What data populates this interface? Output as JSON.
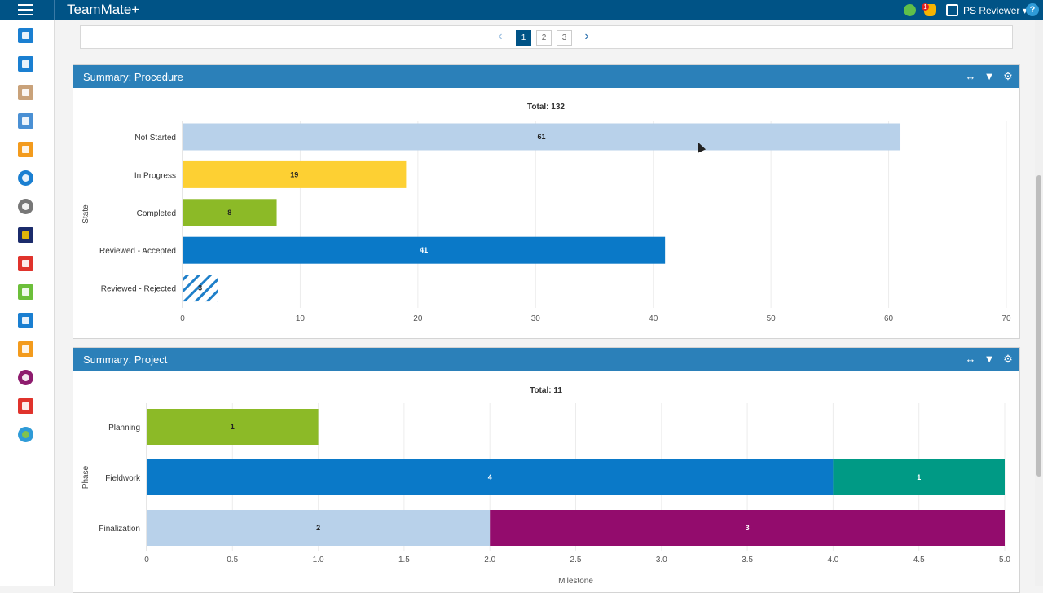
{
  "app": {
    "title": "TeamMate+",
    "user": "PS Reviewer",
    "notification_count": "1",
    "help": "?"
  },
  "icons": {
    "menu": "hamburger-icon",
    "top_right": [
      "send-icon",
      "bell-icon",
      "external-link-icon",
      "help-icon"
    ],
    "sidebar": [
      "home-icon",
      "dashboard-icon",
      "clipboard-icon",
      "tools-icon",
      "briefcase-icon",
      "search-icon",
      "clock-icon",
      "bell-icon",
      "calendar-icon",
      "edit-icon",
      "checklist-icon",
      "document-icon",
      "alert-circle-icon",
      "warning-icon",
      "globe-icon"
    ]
  },
  "colors": {
    "header": "#005386",
    "panel_header": "#2b80b9"
  },
  "pager": {
    "pages": [
      "1",
      "2",
      "3"
    ],
    "current": "1"
  },
  "procedure": {
    "title": "Summary: Procedure",
    "chart_data": {
      "type": "bar",
      "orientation": "horizontal",
      "title": "Total: 132",
      "ylabel": "State",
      "xlabel": "",
      "categories": [
        "Not Started",
        "In Progress",
        "Completed",
        "Reviewed - Accepted",
        "Reviewed - Rejected"
      ],
      "values": [
        61,
        19,
        8,
        41,
        3
      ],
      "value_labels": [
        "61",
        "19",
        "8",
        "41",
        "3"
      ],
      "colors": [
        "#b8d1ea",
        "#fdd033",
        "#8cba27",
        "#0a79c8",
        "hatched-blue"
      ],
      "xlim": [
        0,
        70
      ],
      "xticks": [
        0,
        10,
        20,
        30,
        40,
        50,
        60,
        70
      ],
      "grid": true
    }
  },
  "project": {
    "title": "Summary: Project",
    "chart_data": {
      "type": "bar",
      "orientation": "horizontal",
      "stacked": true,
      "title": "Total: 11",
      "ylabel": "Phase",
      "xlabel": "Milestone",
      "categories": [
        "Planning",
        "Fieldwork",
        "Finalization"
      ],
      "series": [
        {
          "values": [
            1,
            0,
            0
          ],
          "colors": [
            "#8cba27",
            null,
            null
          ]
        },
        {
          "values": [
            0,
            4,
            2
          ],
          "colors": [
            null,
            "#0a79c8",
            "#b8d1ea"
          ]
        },
        {
          "values": [
            0,
            1,
            3
          ],
          "colors": [
            null,
            "#009a85",
            "#930c6d"
          ]
        }
      ],
      "segment_labels": [
        [
          "1"
        ],
        [
          "4",
          "1"
        ],
        [
          "2",
          "3"
        ]
      ],
      "xlim": [
        0,
        5
      ],
      "xticks": [
        "0",
        "0.5",
        "1.0",
        "1.5",
        "2.0",
        "2.5",
        "3.0",
        "3.5",
        "4.0",
        "4.5",
        "5.0"
      ],
      "grid": true
    }
  }
}
